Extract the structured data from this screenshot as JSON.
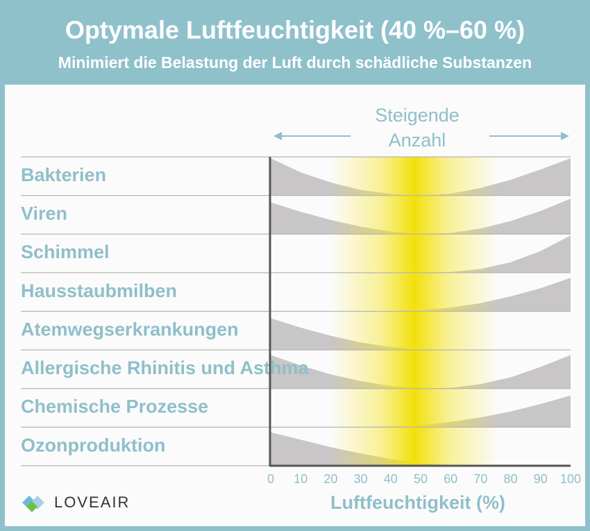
{
  "chart_data": {
    "type": "area",
    "title": "Optymale Luftfeuchtigkeit (40 %–60 %)",
    "subtitle": "Minimiert die Belastung der Luft durch schädliche Substanzen",
    "annotation": [
      "Steigende",
      "Anzahl"
    ],
    "x": [
      0,
      10,
      20,
      30,
      40,
      50,
      60,
      70,
      80,
      90,
      100
    ],
    "xlim": [
      0,
      100
    ],
    "xticks": [
      0,
      10,
      20,
      30,
      40,
      50,
      60,
      70,
      80,
      90,
      100
    ],
    "xlabel": "Luftfeuchtigkeit (%)",
    "series": [
      {
        "name": "Bakterien",
        "color": "#c8c6c6",
        "values": [
          1.0,
          0.62,
          0.35,
          0.15,
          0.04,
          0,
          0.05,
          0.2,
          0.42,
          0.7,
          1.0
        ]
      },
      {
        "name": "Viren",
        "color": "#c8c6c6",
        "values": [
          0.85,
          0.6,
          0.38,
          0.2,
          0.07,
          0.01,
          0.03,
          0.15,
          0.35,
          0.62,
          0.95
        ]
      },
      {
        "name": "Schimmel",
        "color": "#c8c6c6",
        "values": [
          0,
          0,
          0,
          0,
          0,
          0,
          0.02,
          0.1,
          0.28,
          0.58,
          1.0
        ]
      },
      {
        "name": "Hausstaubmilben",
        "color": "#c8c6c6",
        "values": [
          0,
          0,
          0,
          0,
          0,
          0.03,
          0.1,
          0.22,
          0.4,
          0.62,
          0.9
        ]
      },
      {
        "name": "Atemwegserkrankungen",
        "color": "#c8c6c6",
        "values": [
          0.85,
          0.6,
          0.38,
          0.2,
          0.08,
          0.02,
          0,
          0,
          0,
          0,
          0
        ]
      },
      {
        "name": "Allergische Rhinitis und Asthma",
        "color": "#c8c6c6",
        "values": [
          0.9,
          0.62,
          0.38,
          0.2,
          0.07,
          0.01,
          0.02,
          0.12,
          0.3,
          0.58,
          0.9
        ]
      },
      {
        "name": "Chemische Prozesse",
        "color": "#c8c6c6",
        "values": [
          0,
          0,
          0,
          0,
          0.02,
          0.06,
          0.14,
          0.26,
          0.42,
          0.62,
          0.85
        ]
      },
      {
        "name": "Ozonproduktion",
        "color": "#c8c6c6",
        "values": [
          0.9,
          0.7,
          0.5,
          0.33,
          0.18,
          0.07,
          0.02,
          0,
          0,
          0,
          0
        ]
      }
    ],
    "brand": "LOVEAIR"
  }
}
